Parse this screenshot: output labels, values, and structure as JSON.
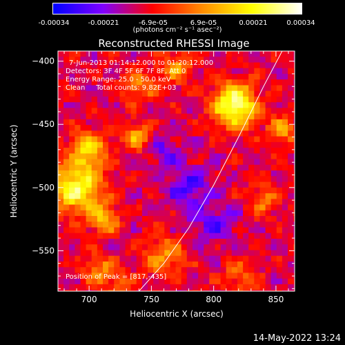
{
  "colorbar": {
    "ticks": [
      "-0.00034",
      "-0.00021",
      "-6.9e-05",
      "6.9e-05",
      "0.00021",
      "0.00034"
    ],
    "label": "(photons cm⁻² s⁻¹ asec⁻²)",
    "vmin": -0.00034,
    "vmax": 0.00034,
    "colormap": [
      "#0000ff",
      "#7f00ff",
      "#ff0000",
      "#ff8c00",
      "#ffff00",
      "#ffffff"
    ]
  },
  "annotations": {
    "time": "7-Jun-2013 01:14:12.000 to 01:20:12.000",
    "detectors": "Detectors: 3F 4F 5F 6F 7F 8F, Att 0",
    "energy": "Energy Range: 25.0 - 50.0 keV",
    "clean": "Clean     Total counts: 9.82E+03",
    "peak": "Position of Peak = [817,-435]"
  },
  "timestamp": "14-May-2022 13:24",
  "chart_data": {
    "type": "heatmap",
    "title": "Reconstructed RHESSI Image",
    "xlabel": "Heliocentric X (arcsec)",
    "ylabel": "Heliocentric Y (arcsec)",
    "xlim": [
      675,
      865
    ],
    "ylim": [
      -582,
      -392
    ],
    "xticks": [
      700,
      750,
      800,
      850
    ],
    "yticks": [
      -400,
      -450,
      -500,
      -550
    ],
    "limb_curve": [
      [
        740,
        -582
      ],
      [
        760,
        -560
      ],
      [
        780,
        -532
      ],
      [
        800,
        -498
      ],
      [
        820,
        -460
      ],
      [
        840,
        -420
      ],
      [
        855,
        -392
      ]
    ],
    "sources": [
      {
        "x": 817,
        "y": -435,
        "sigma": 12,
        "amp": 1.0
      },
      {
        "x": 690,
        "y": -500,
        "sigma": 14,
        "amp": 0.85
      },
      {
        "x": 700,
        "y": -470,
        "sigma": 10,
        "amp": 0.6
      },
      {
        "x": 712,
        "y": -525,
        "sigma": 8,
        "amp": 0.55
      },
      {
        "x": 738,
        "y": -460,
        "sigma": 8,
        "amp": 0.5
      },
      {
        "x": 770,
        "y": -405,
        "sigma": 9,
        "amp": 0.45
      },
      {
        "x": 740,
        "y": -420,
        "sigma": 9,
        "amp": 0.4
      },
      {
        "x": 760,
        "y": -555,
        "sigma": 11,
        "amp": 0.45
      },
      {
        "x": 708,
        "y": -565,
        "sigma": 9,
        "amp": 0.4
      },
      {
        "x": 855,
        "y": -455,
        "sigma": 8,
        "amp": 0.45
      },
      {
        "x": 840,
        "y": -510,
        "sigma": 9,
        "amp": 0.35
      },
      {
        "x": 725,
        "y": -580,
        "sigma": 8,
        "amp": 0.3
      },
      {
        "x": 820,
        "y": -570,
        "sigma": 10,
        "amp": 0.3
      },
      {
        "x": 780,
        "y": -500,
        "sigma": 12,
        "amp": -0.35
      },
      {
        "x": 800,
        "y": -530,
        "sigma": 12,
        "amp": -0.3
      },
      {
        "x": 760,
        "y": -470,
        "sigma": 10,
        "amp": -0.25
      }
    ],
    "peak": [
      817,
      -435
    ]
  }
}
